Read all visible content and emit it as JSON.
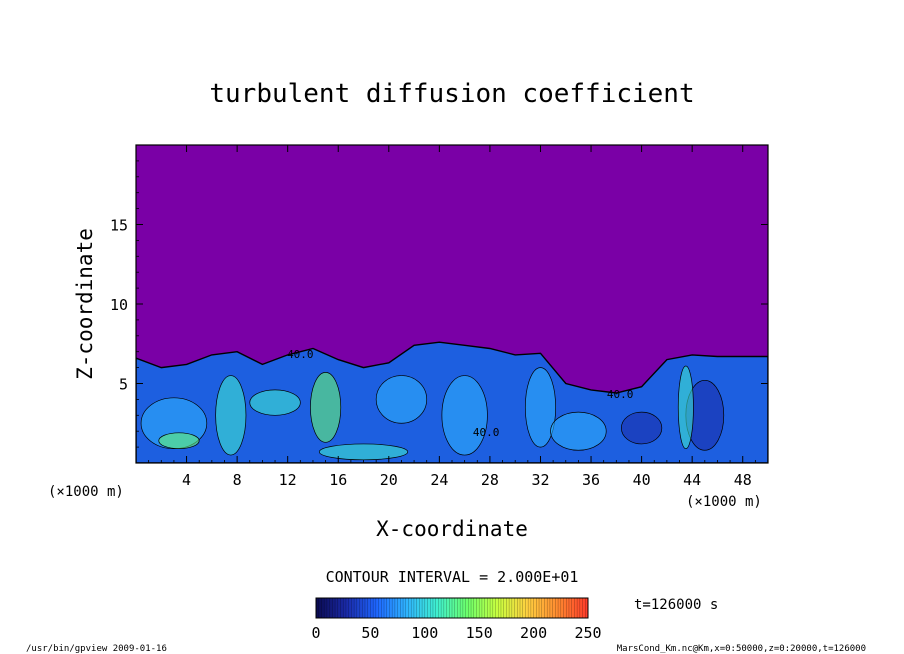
{
  "chart_data": {
    "type": "heatmap",
    "title": "turbulent diffusion coefficient",
    "xlabel": "X-coordinate",
    "ylabel": "Z-coordinate",
    "x_unit_left": "(×1000 m)",
    "x_unit_right": "(×1000 m)",
    "xlim": [
      0,
      50
    ],
    "ylim": [
      0,
      20
    ],
    "x_ticks": [
      4,
      8,
      12,
      16,
      20,
      24,
      28,
      32,
      36,
      40,
      44,
      48
    ],
    "y_ticks": [
      5,
      10,
      15
    ],
    "contour_interval_text": "CONTOUR INTERVAL = 2.000E+01",
    "contour_labels": [
      {
        "text": "40.0",
        "x": 13.0,
        "z": 6.6
      },
      {
        "text": "40.0",
        "x": 27.7,
        "z": 1.7
      },
      {
        "text": "40.0",
        "x": 38.3,
        "z": 4.1
      }
    ],
    "colorbar": {
      "ticks": [
        0,
        50,
        100,
        150,
        200,
        250
      ],
      "range": [
        0,
        250
      ],
      "colors": [
        "#0a0a50",
        "#1a2aa8",
        "#1e66ff",
        "#2fb4ff",
        "#3ff0d0",
        "#6cff6c",
        "#c8ff40",
        "#ffd040",
        "#ff8a30",
        "#ff3a2a"
      ]
    },
    "background_color": "#7a00a6",
    "boundary_layer_top_z": [
      [
        0,
        6.6
      ],
      [
        2,
        6.0
      ],
      [
        4,
        6.2
      ],
      [
        6,
        6.8
      ],
      [
        8,
        7.0
      ],
      [
        10,
        6.2
      ],
      [
        12,
        6.8
      ],
      [
        14,
        7.2
      ],
      [
        16,
        6.5
      ],
      [
        18,
        6.0
      ],
      [
        20,
        6.3
      ],
      [
        22,
        7.4
      ],
      [
        24,
        7.6
      ],
      [
        26,
        7.4
      ],
      [
        28,
        7.2
      ],
      [
        30,
        6.8
      ],
      [
        32,
        6.9
      ],
      [
        34,
        5.0
      ],
      [
        36,
        4.6
      ],
      [
        38,
        4.4
      ],
      [
        40,
        4.8
      ],
      [
        42,
        6.5
      ],
      [
        44,
        6.8
      ],
      [
        46,
        6.7
      ],
      [
        48,
        6.7
      ],
      [
        50,
        6.7
      ]
    ]
  },
  "timestamp": "t=126000 s",
  "footer": {
    "left": "/usr/bin/gpview  2009-01-16",
    "right": "MarsCond_Km.nc@Km,x=0:50000,z=0:20000,t=126000"
  }
}
